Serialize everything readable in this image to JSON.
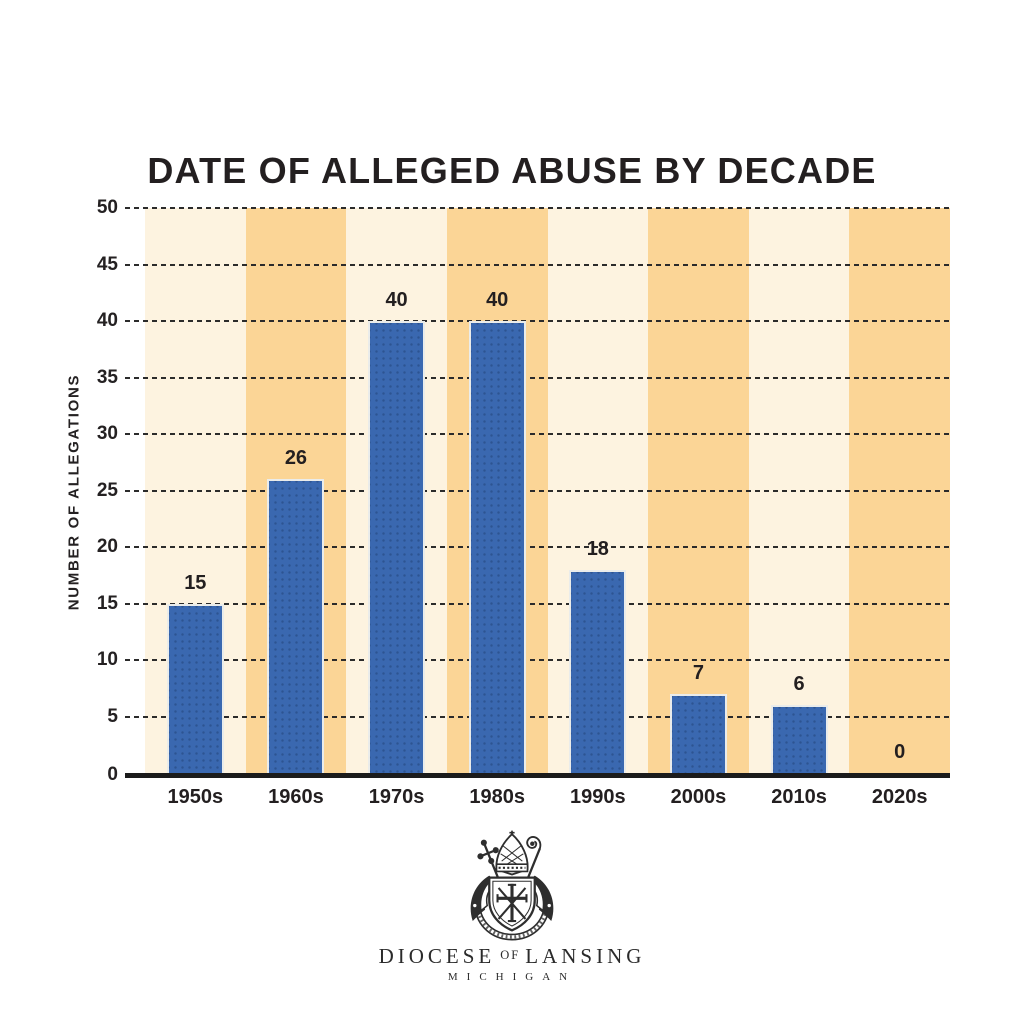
{
  "chart_data": {
    "type": "bar",
    "title": "DATE OF ALLEGED ABUSE BY DECADE",
    "xlabel": "",
    "ylabel": "NUMBER OF ALLEGATIONS",
    "categories": [
      "1950s",
      "1960s",
      "1970s",
      "1980s",
      "1990s",
      "2000s",
      "2010s",
      "2020s"
    ],
    "values": [
      15,
      26,
      40,
      40,
      18,
      7,
      6,
      0
    ],
    "ylim": [
      0,
      50
    ],
    "yticks": [
      0,
      5,
      10,
      15,
      20,
      25,
      30,
      35,
      40,
      45,
      50
    ],
    "grid": "horizontal-dashed",
    "legend": "none",
    "bar_color": "#3a68b0",
    "bar_dot_color": "#2d5492",
    "band_colors": [
      "#fdf3e0",
      "#fbd596"
    ],
    "gridline_color": "#2b2b2b",
    "axis_color": "#1b1b1b",
    "label_color": "#231f20"
  },
  "logo": {
    "crest_icon": "diocese-of-lansing-crest",
    "wordmark_diocese": "DIOCESE",
    "wordmark_of": "OF",
    "wordmark_lansing": "LANSING",
    "wordmark_michigan": "MICHIGAN"
  }
}
